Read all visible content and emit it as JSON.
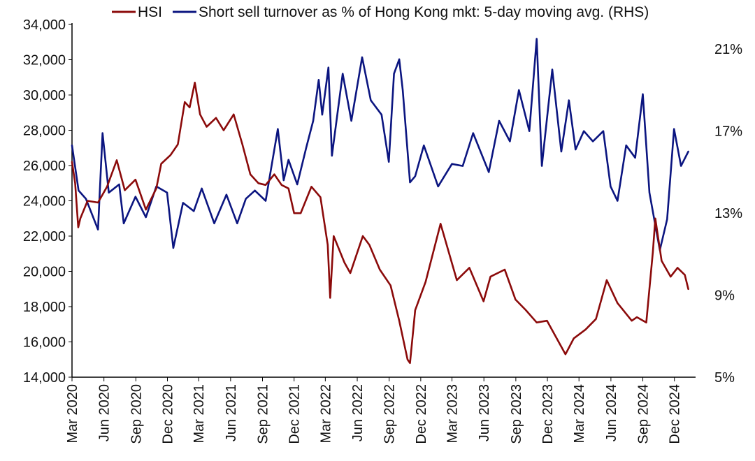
{
  "chart_data": {
    "type": "line",
    "title": "",
    "xlabel": "",
    "ylabel": "",
    "y2label": "",
    "grid": false,
    "legend_position": "top",
    "x_ticks": [
      "Mar 2020",
      "Jun 2020",
      "Sep 2020",
      "Dec 2020",
      "Mar 2021",
      "Jun 2021",
      "Sep 2021",
      "Dec 2021",
      "Mar 2022",
      "Jun 2022",
      "Sep 2022",
      "Dec 2022",
      "Mar 2023",
      "Jun 2023",
      "Sep 2023",
      "Dec 2023",
      "Mar 2024",
      "Jun 2024",
      "Sep 2024",
      "Dec 2024"
    ],
    "y_left": {
      "ylim": [
        14000,
        34000
      ],
      "ticks": [
        "14,000",
        "16,000",
        "18,000",
        "20,000",
        "22,000",
        "24,000",
        "26,000",
        "28,000",
        "30,000",
        "32,000",
        "34,000"
      ]
    },
    "y_right": {
      "ylim": [
        5,
        22.2
      ],
      "ticks": [
        "5%",
        "9%",
        "13%",
        "17%",
        "21%"
      ],
      "tick_values": [
        5,
        9,
        13,
        17,
        21
      ]
    },
    "series": [
      {
        "name": "HSI",
        "axis": "left",
        "color": "#8B0A0A",
        "x": [
          "2020-03-01",
          "2020-03-10",
          "2020-03-19",
          "2020-03-25",
          "2020-04-15",
          "2020-05-15",
          "2020-06-10",
          "2020-07-08",
          "2020-07-31",
          "2020-08-31",
          "2020-09-30",
          "2020-10-30",
          "2020-11-13",
          "2020-12-10",
          "2020-12-31",
          "2021-01-20",
          "2021-02-03",
          "2021-02-18",
          "2021-03-05",
          "2021-03-24",
          "2021-04-20",
          "2021-05-12",
          "2021-06-10",
          "2021-07-05",
          "2021-07-28",
          "2021-08-20",
          "2021-09-10",
          "2021-10-05",
          "2021-10-26",
          "2021-11-15",
          "2021-12-01",
          "2021-12-20",
          "2022-01-20",
          "2022-02-15",
          "2022-03-08",
          "2022-03-15",
          "2022-03-25",
          "2022-04-25",
          "2022-05-12",
          "2022-06-17",
          "2022-07-06",
          "2022-08-05",
          "2022-09-05",
          "2022-09-30",
          "2022-10-24",
          "2022-10-31",
          "2022-11-15",
          "2022-12-15",
          "2023-01-27",
          "2023-03-15",
          "2023-04-20",
          "2023-05-31",
          "2023-06-20",
          "2023-07-31",
          "2023-08-31",
          "2023-09-30",
          "2023-10-31",
          "2023-11-30",
          "2024-01-22",
          "2024-02-15",
          "2024-03-20",
          "2024-04-19",
          "2024-05-20",
          "2024-06-20",
          "2024-07-31",
          "2024-08-15",
          "2024-09-11",
          "2024-09-30",
          "2024-10-07",
          "2024-10-25",
          "2024-11-20",
          "2024-12-10",
          "2024-12-31",
          "2025-01-10"
        ],
        "values": [
          26200,
          25000,
          22500,
          23000,
          24000,
          23900,
          24800,
          26300,
          24600,
          25200,
          23500,
          24700,
          26100,
          26600,
          27200,
          29600,
          29300,
          30700,
          28900,
          28200,
          28700,
          28000,
          28900,
          27200,
          25500,
          25000,
          24900,
          25500,
          24900,
          24700,
          23300,
          23300,
          24800,
          24200,
          21500,
          18500,
          22000,
          20500,
          19900,
          22000,
          21500,
          20100,
          19200,
          17200,
          15000,
          14800,
          17800,
          19400,
          22700,
          19500,
          20200,
          18300,
          19700,
          20100,
          18400,
          17800,
          17100,
          17200,
          15300,
          16200,
          16700,
          17300,
          19500,
          18200,
          17200,
          17400,
          17100,
          21100,
          23000,
          20600,
          19700,
          20200,
          19800,
          19000
        ]
      },
      {
        "name": "Short sell turnover as % of Hong Kong mkt: 5-day moving avg. (RHS)",
        "axis": "right",
        "color": "#0B1580",
        "x": [
          "2020-03-01",
          "2020-03-20",
          "2020-04-10",
          "2020-05-15",
          "2020-05-28",
          "2020-06-15",
          "2020-07-15",
          "2020-07-28",
          "2020-08-31",
          "2020-09-30",
          "2020-10-30",
          "2020-11-30",
          "2020-12-18",
          "2021-01-15",
          "2021-02-15",
          "2021-03-10",
          "2021-04-15",
          "2021-05-20",
          "2021-06-20",
          "2021-07-15",
          "2021-08-10",
          "2021-09-10",
          "2021-10-15",
          "2021-11-01",
          "2021-11-15",
          "2021-12-10",
          "2022-01-05",
          "2022-01-25",
          "2022-02-10",
          "2022-02-20",
          "2022-03-10",
          "2022-03-20",
          "2022-04-20",
          "2022-05-15",
          "2022-06-15",
          "2022-07-10",
          "2022-08-10",
          "2022-08-31",
          "2022-09-15",
          "2022-09-30",
          "2022-10-10",
          "2022-10-31",
          "2022-11-15",
          "2022-12-10",
          "2023-01-20",
          "2023-03-01",
          "2023-04-01",
          "2023-05-01",
          "2023-06-15",
          "2023-07-15",
          "2023-08-15",
          "2023-09-10",
          "2023-10-10",
          "2023-10-31",
          "2023-11-15",
          "2023-12-15",
          "2024-01-10",
          "2024-02-01",
          "2024-02-20",
          "2024-03-15",
          "2024-04-10",
          "2024-05-10",
          "2024-05-31",
          "2024-06-20",
          "2024-07-15",
          "2024-08-10",
          "2024-09-01",
          "2024-09-20",
          "2024-10-05",
          "2024-10-20",
          "2024-11-10",
          "2024-11-30",
          "2024-12-20",
          "2025-01-10"
        ],
        "values": [
          16.3,
          14.1,
          13.7,
          12.2,
          16.9,
          14.0,
          14.4,
          12.5,
          13.8,
          12.8,
          14.3,
          14.0,
          11.3,
          13.5,
          13.1,
          14.2,
          12.5,
          13.9,
          12.5,
          13.7,
          14.1,
          13.6,
          17.1,
          14.6,
          15.6,
          14.4,
          16.2,
          17.5,
          19.5,
          17.8,
          20.1,
          15.8,
          19.8,
          17.5,
          20.6,
          18.5,
          17.8,
          15.5,
          19.8,
          20.5,
          19.0,
          14.5,
          14.8,
          16.3,
          14.3,
          15.4,
          15.3,
          16.9,
          15.0,
          17.5,
          16.5,
          19.0,
          17.0,
          21.5,
          15.3,
          20.0,
          16.0,
          18.5,
          16.1,
          17.0,
          16.5,
          17.0,
          14.3,
          13.6,
          16.3,
          15.7,
          18.8,
          14.0,
          12.6,
          11.2,
          12.7,
          17.1,
          15.3,
          16.0
        ]
      }
    ]
  }
}
